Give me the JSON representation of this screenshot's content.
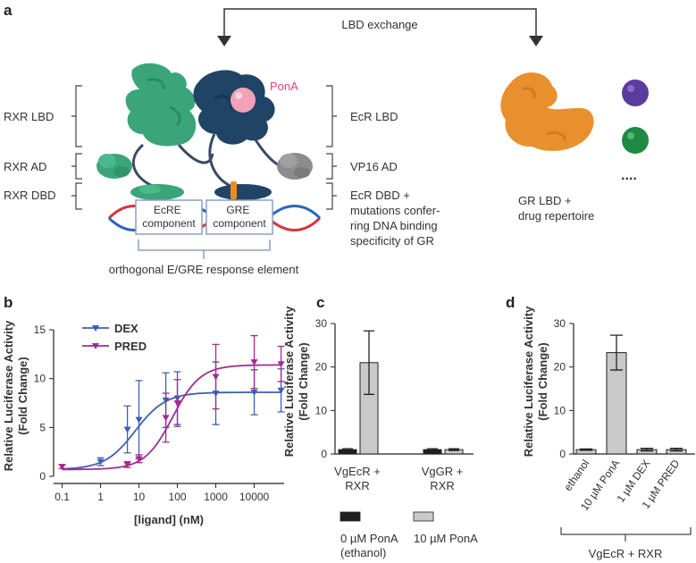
{
  "panels": {
    "a": "a",
    "b": "b",
    "c": "c",
    "d": "d"
  },
  "panel_a": {
    "lbd_exchange": "LBD exchange",
    "ponA": "PonA",
    "rxr_lbd": "RXR LBD",
    "rxr_ad": "RXR AD",
    "rxr_dbd": "RXR DBD",
    "ecr_lbd": "EcR LBD",
    "vp16_ad": "VP16 AD",
    "ecr_dbd_lines": [
      "EcR DBD +",
      "mutations confer-",
      "ring DNA binding",
      "specificity of GR"
    ],
    "ecre_lines": [
      "EcRE",
      "component"
    ],
    "gre_lines": [
      "GRE",
      "component"
    ],
    "response_element": "orthogonal E/GRE response element",
    "gr_lines": [
      "GR LBD +",
      "drug repertoire"
    ],
    "ellipsis": "....",
    "colors": {
      "rxr": "#3aa57a",
      "ecr": "#1f4466",
      "ponA_ball": "#f4a0b8",
      "ponA_text": "#e0457c",
      "gr": "#e8902e",
      "purple": "#5a3c9e",
      "green_ball": "#1f8a44",
      "gray_ad": "#8c8c8c",
      "orange_mark": "#f08a24"
    }
  },
  "chart_data": [
    {
      "panel": "b",
      "type": "scatter",
      "xlabel": "[ligand] (nM)",
      "ylabel": [
        "Relative Luciferase Activity",
        "(Fold Change)"
      ],
      "xscale": "log",
      "xlim": [
        0.06,
        60000
      ],
      "ylim": [
        0,
        15
      ],
      "x_ticks": [
        0.1,
        1,
        10,
        100,
        1000,
        10000
      ],
      "x_tick_labels": [
        "0.1",
        "1",
        "10",
        "100",
        "1000",
        "10000"
      ],
      "y_ticks": [
        0,
        5,
        10,
        15
      ],
      "y_tick_labels": [
        "0",
        "5",
        "10",
        "15"
      ],
      "legend_position": "top-left",
      "series": [
        {
          "name": "DEX",
          "color": "#3b5fb5",
          "x": [
            1,
            5,
            10,
            50,
            100,
            1000,
            10000,
            50000
          ],
          "y": [
            1.5,
            4.8,
            5.8,
            7.8,
            8.0,
            8.5,
            8.6,
            8.8
          ],
          "err": [
            0.4,
            2.4,
            4.0,
            2.8,
            2.7,
            3.2,
            2.3,
            2.2
          ],
          "fit": {
            "bottom": 0.7,
            "top": 8.6,
            "ec50": 8.0,
            "hill": 1.1
          }
        },
        {
          "name": "PRED",
          "color": "#a32b8e",
          "x": [
            0.1,
            5,
            10,
            50,
            100,
            1000,
            10000,
            50000
          ],
          "y": [
            1.0,
            1.2,
            1.8,
            6.0,
            7.5,
            10.2,
            11.7,
            11.5
          ],
          "err": [
            0.2,
            0.3,
            0.4,
            2.5,
            2.4,
            3.3,
            2.7,
            1.8
          ],
          "fit": {
            "bottom": 0.7,
            "top": 11.4,
            "ec50": 75,
            "hill": 1.2
          }
        }
      ]
    },
    {
      "panel": "c",
      "type": "bar",
      "ylabel": [
        "Relative Luciferase Activity",
        "(Fold Change)"
      ],
      "ylim": [
        0,
        30
      ],
      "y_ticks": [
        0,
        10,
        20,
        30
      ],
      "y_tick_labels": [
        "0",
        "10",
        "20",
        "30"
      ],
      "categories": [
        [
          "VgEcR +",
          "RXR"
        ],
        [
          "VgGR +",
          "RXR"
        ]
      ],
      "series": [
        {
          "name": "0 µM PonA (ethanol)",
          "legend_lines": [
            "0 µM PonA",
            "(ethanol)"
          ],
          "color": "#1e1e1e",
          "values": [
            1.0,
            1.0
          ],
          "err": [
            0.2,
            0.2
          ]
        },
        {
          "name": "10 µM PonA",
          "legend_lines": [
            "10 µM PonA"
          ],
          "color": "#c9c9c9",
          "values": [
            21.0,
            1.0
          ],
          "err": [
            7.3,
            0.2
          ]
        }
      ],
      "legend_position": "bottom"
    },
    {
      "panel": "d",
      "type": "bar",
      "ylabel": [
        "Relative Luciferase Activity",
        "(Fold Change)"
      ],
      "ylim": [
        0,
        30
      ],
      "y_ticks": [
        0,
        10,
        20,
        30
      ],
      "y_tick_labels": [
        "0",
        "10",
        "20",
        "30"
      ],
      "categories": [
        "ethanol",
        "10 µM PonA",
        "1 µM DEX",
        "1 µM PRED"
      ],
      "values": [
        1.0,
        23.3,
        1.0,
        1.0
      ],
      "err": [
        0.15,
        4.0,
        0.3,
        0.3
      ],
      "color": "#c9c9c9",
      "group_label": "VgEcR + RXR"
    }
  ]
}
